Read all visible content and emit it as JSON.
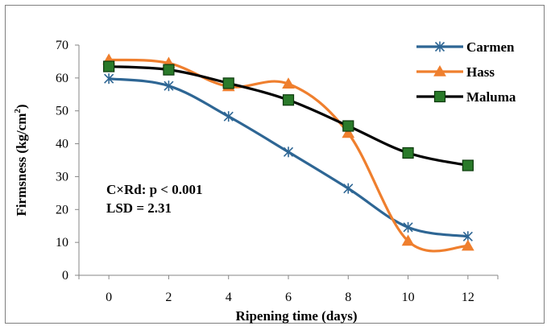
{
  "chart_data": {
    "type": "line",
    "title": "",
    "xlabel": "Ripening time (days)",
    "ylabel_main": "Firmsness (kg/cm",
    "ylabel_sup": "2",
    "ylabel_close": ")",
    "xlim": [
      -1,
      13
    ],
    "ylim": [
      0,
      70
    ],
    "x_ticks": [
      0,
      2,
      4,
      6,
      8,
      10,
      12
    ],
    "y_ticks": [
      0,
      10,
      20,
      30,
      40,
      50,
      60,
      70
    ],
    "grid": false,
    "legend_position": "top-right",
    "x": [
      0,
      2,
      4,
      6,
      8,
      10,
      12
    ],
    "series": [
      {
        "name": "Carmen",
        "values": [
          59.8,
          57.6,
          48.3,
          37.5,
          26.4,
          14.6,
          11.8
        ],
        "color": "#2e6694",
        "marker": "asterisk"
      },
      {
        "name": "Hass",
        "values": [
          65.5,
          64.5,
          57.4,
          58.2,
          43.2,
          10.4,
          8.9
        ],
        "color": "#ef7f2e",
        "marker": "triangle"
      },
      {
        "name": "Maluma",
        "values": [
          63.5,
          62.5,
          58.4,
          53.3,
          45.4,
          37.2,
          33.4
        ],
        "color": "#000000",
        "marker": "square",
        "marker_fill": "#2a7a2a"
      }
    ],
    "annotations": [
      "C×Rd: p < 0.001",
      "LSD = 2.31"
    ]
  }
}
